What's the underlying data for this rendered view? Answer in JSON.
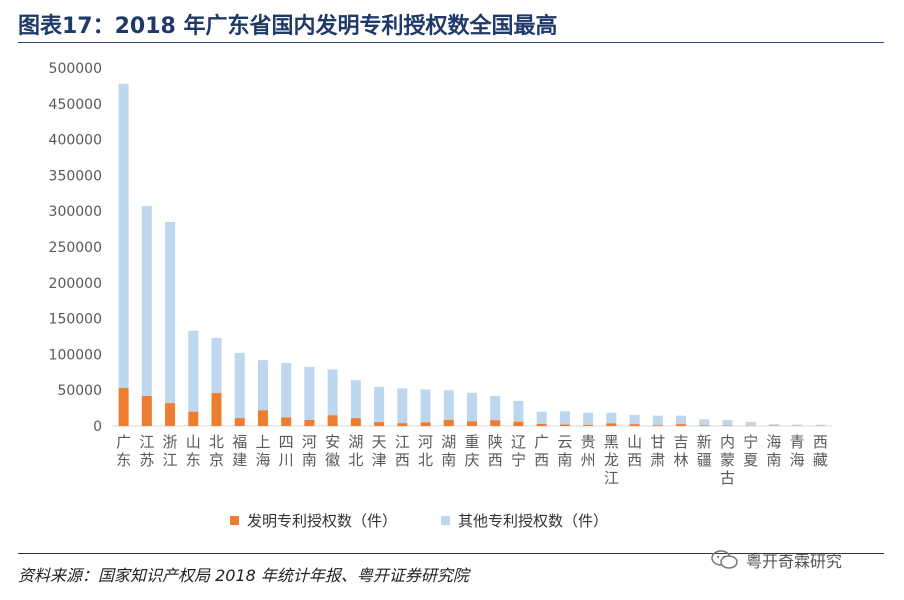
{
  "title": "图表17：2018 年广东省国内发明专利授权数全国最高",
  "source": "资料来源：国家知识产权局 2018 年统计年报、粤开证券研究院",
  "watermark": "粤开奇霖研究",
  "colors": {
    "invention": "#ed7d31",
    "other": "#bdd7ee",
    "axis": "#d9d9d9",
    "text": "#595959"
  },
  "chart_data": {
    "type": "bar",
    "stacked": true,
    "categories": [
      "广东",
      "江苏",
      "浙江",
      "山东",
      "北京",
      "福建",
      "上海",
      "四川",
      "河南",
      "安徽",
      "湖北",
      "天津",
      "江西",
      "河北",
      "湖南",
      "重庆",
      "陕西",
      "辽宁",
      "广西",
      "云南",
      "贵州",
      "黑龙江",
      "山西",
      "甘肃",
      "吉林",
      "新疆",
      "内蒙古",
      "宁夏",
      "海南",
      "青海",
      "西藏"
    ],
    "series": [
      {
        "name": "发明专利授权数（件）",
        "values": [
          53000,
          42000,
          32000,
          20000,
          46000,
          11000,
          22000,
          12000,
          8500,
          15000,
          11000,
          5500,
          4000,
          5000,
          8500,
          6500,
          8000,
          6000,
          3000,
          2000,
          1500,
          3500,
          2500,
          1000,
          2500,
          800,
          500,
          300,
          300,
          100,
          100
        ]
      },
      {
        "name": "其他专利授权数（件）",
        "values": [
          425000,
          265000,
          253000,
          113000,
          77000,
          91000,
          70000,
          76000,
          74000,
          64000,
          53000,
          49000,
          48500,
          46000,
          41500,
          40000,
          34000,
          29000,
          17000,
          18500,
          17000,
          15000,
          13000,
          13500,
          12000,
          8500,
          8000,
          5500,
          2300,
          1900,
          1700
        ]
      }
    ],
    "ylim": [
      0,
      500000
    ],
    "yticks": [
      "0",
      "50000",
      "100000",
      "150000",
      "200000",
      "250000",
      "300000",
      "350000",
      "400000",
      "450000",
      "500000"
    ],
    "legend_position": "bottom",
    "grid": false
  }
}
